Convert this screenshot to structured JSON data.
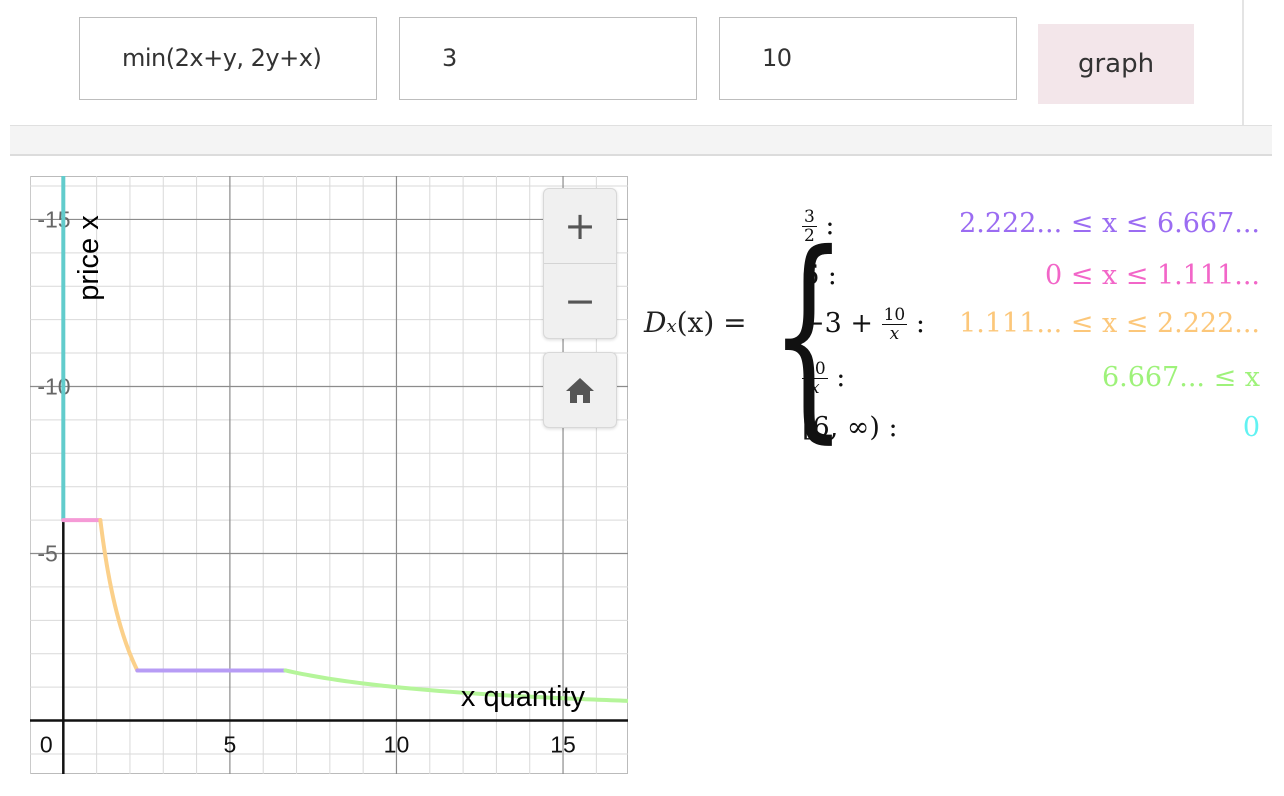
{
  "form": {
    "function_value": "min(2x+y, 2y+x)",
    "price_y_value": "3",
    "budget_value": "10",
    "graph_label": "graph"
  },
  "zoom": {
    "plus_label": "+",
    "minus_label": "−",
    "home_icon": "home-icon"
  },
  "formula": {
    "lhs_symbol": "D",
    "lhs_sub": "x",
    "lhs_arg": "(x) =",
    "cases": [
      {
        "expr_num": "3",
        "expr_den": "2",
        "expr_tail": ":",
        "condition": "2.222... ≤ x ≤ 6.667...",
        "color": "#9b6cf2"
      },
      {
        "expr": "6 :",
        "condition": "0 ≤ x ≤ 1.111...",
        "color": "#f266c8"
      },
      {
        "expr_pre": "−3 +",
        "expr_num": "10",
        "expr_den": "x",
        "expr_tail": ":",
        "condition": "1.111... ≤ x ≤ 2.222...",
        "color": "#fcc77a"
      },
      {
        "expr_num": "10",
        "expr_den": "x",
        "expr_tail": ":",
        "condition": "6.667... ≤ x",
        "color": "#9ef27a"
      },
      {
        "expr": "[6, ∞) :",
        "condition": "0",
        "color": "#62f2f2"
      }
    ]
  },
  "chart_data": {
    "type": "line",
    "xlabel": "x quantity",
    "ylabel": "price x",
    "xlim": [
      -1.0,
      16.95
    ],
    "ylim": [
      -1.6,
      16.3
    ],
    "x_ticks": [
      0,
      5,
      10,
      15
    ],
    "y_ticks": [
      5,
      10,
      15
    ],
    "grid": true,
    "series": [
      {
        "color": "#62cccc",
        "segments": [
          [
            [
              0,
              6
            ],
            [
              0,
              16.3
            ]
          ]
        ]
      },
      {
        "color": "#f59ad6",
        "segments": [
          [
            [
              0,
              6
            ],
            [
              1.111,
              6
            ]
          ]
        ]
      },
      {
        "color": "#fbd08a",
        "function": "-3+10/x",
        "domain": [
          1.111,
          2.222
        ]
      },
      {
        "color": "#b79cf5",
        "segments": [
          [
            [
              2.222,
              1.5
            ],
            [
              6.667,
              1.5
            ]
          ]
        ]
      },
      {
        "color": "#b5f59a",
        "function": "10/x",
        "domain": [
          6.667,
          16.95
        ]
      }
    ]
  }
}
